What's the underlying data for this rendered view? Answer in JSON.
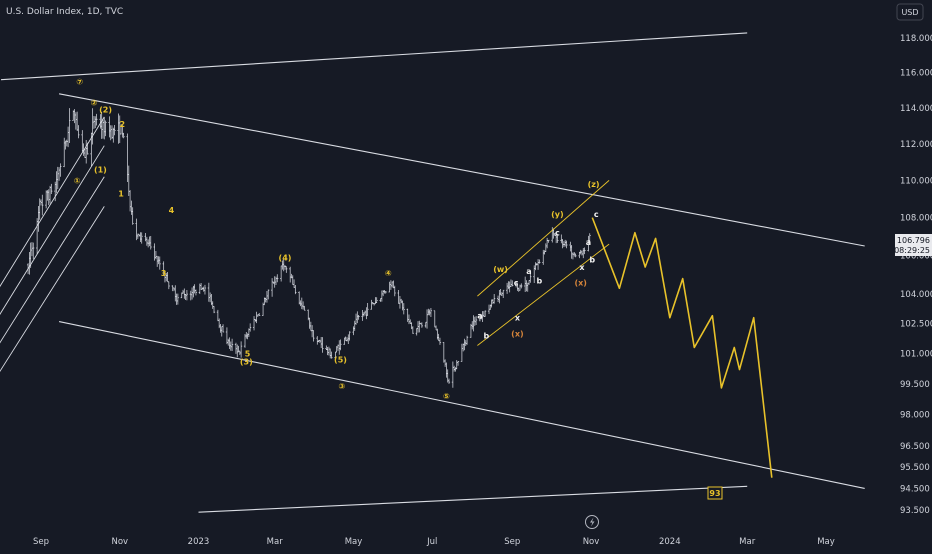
{
  "header": {
    "title": "U.S. Dollar Index, 1D, TVC",
    "currency_label": "USD"
  },
  "price_tag": {
    "price": "106.796",
    "countdown": "08:29:25"
  },
  "end_badge": "93",
  "colors": {
    "background": "#161a25",
    "bar": "#d1d4dc",
    "channel": "#d9dce3",
    "wave": "#e8c22a",
    "wave_small": "#f0f0f0",
    "x_label": "#d5843a",
    "text": "#d1d4dc"
  },
  "chart_data": {
    "type": "ohlc",
    "title": "U.S. Dollar Index, 1D, TVC",
    "y_axis": {
      "side": "right",
      "scale": "log",
      "ticks": [
        "118.000",
        "116.000",
        "114.000",
        "112.000",
        "110.000",
        "108.000",
        "106.000",
        "104.000",
        "102.500",
        "101.000",
        "99.500",
        "98.000",
        "96.500",
        "95.500",
        "94.500",
        "93.500"
      ]
    },
    "x_axis": {
      "ticks": [
        "Sep",
        "Nov",
        "2023",
        "Mar",
        "May",
        "Jul",
        "Sep",
        "Nov",
        "2024",
        "Mar",
        "May"
      ],
      "tick_dates": [
        "2022-09-01",
        "2022-11-01",
        "2023-01-01",
        "2023-03-01",
        "2023-05-01",
        "2023-07-01",
        "2023-09-01",
        "2023-11-01",
        "2024-01-01",
        "2024-03-01",
        "2024-05-01"
      ]
    },
    "price_path": [
      [
        "2022-08-20",
        105.2
      ],
      [
        "2022-09-01",
        108.7
      ],
      [
        "2022-09-12",
        109.8
      ],
      [
        "2022-09-27",
        114.1
      ],
      [
        "2022-10-04",
        110.9
      ],
      [
        "2022-10-13",
        113.4
      ],
      [
        "2022-10-20",
        112.9
      ],
      [
        "2022-11-03",
        112.8
      ],
      [
        "2022-11-10",
        107.9
      ],
      [
        "2022-11-30",
        105.8
      ],
      [
        "2022-12-15",
        103.9
      ],
      [
        "2023-01-05",
        104.5
      ],
      [
        "2023-01-26",
        101.3
      ],
      [
        "2023-02-02",
        101.2
      ],
      [
        "2023-03-08",
        105.6
      ],
      [
        "2023-03-31",
        101.9
      ],
      [
        "2023-04-14",
        100.9
      ],
      [
        "2023-05-31",
        104.7
      ],
      [
        "2023-06-16",
        102.0
      ],
      [
        "2023-06-30",
        103.1
      ],
      [
        "2023-07-14",
        99.7
      ],
      [
        "2023-08-01",
        102.5
      ],
      [
        "2023-08-25",
        104.1
      ],
      [
        "2023-09-12",
        104.6
      ],
      [
        "2023-10-03",
        107.2
      ],
      [
        "2023-10-20",
        105.8
      ],
      [
        "2023-10-24",
        106.1
      ],
      [
        "2023-10-26",
        106.4
      ],
      [
        "2023-10-31",
        106.8
      ]
    ],
    "projection": [
      [
        "2023-11-02",
        108.0
      ],
      [
        "2023-11-23",
        104.3
      ],
      [
        "2023-12-05",
        107.2
      ],
      [
        "2023-12-13",
        105.4
      ],
      [
        "2023-12-21",
        106.9
      ],
      [
        "2024-01-01",
        102.8
      ],
      [
        "2024-01-11",
        104.8
      ],
      [
        "2024-01-20",
        101.3
      ],
      [
        "2024-02-03",
        102.9
      ],
      [
        "2024-02-10",
        99.3
      ],
      [
        "2024-02-20",
        101.3
      ],
      [
        "2024-02-24",
        100.2
      ],
      [
        "2024-03-06",
        102.8
      ],
      [
        "2024-03-20",
        95.0
      ]
    ],
    "trendlines": [
      {
        "from": [
          "2022-08-01",
          115.6
        ],
        "to": [
          "2024-03-01",
          118.3
        ]
      },
      {
        "from": [
          "2022-09-15",
          114.8
        ],
        "to": [
          "2024-05-31",
          106.5
        ]
      },
      {
        "from": [
          "2022-09-15",
          102.6
        ],
        "to": [
          "2024-05-31",
          94.5
        ]
      },
      {
        "from": [
          "2023-01-01",
          93.4
        ],
        "to": [
          "2024-03-01",
          94.6
        ]
      }
    ],
    "wave_labels": [
      {
        "text": "⑦",
        "date": "2022-10-01",
        "price": 115.5
      },
      {
        "text": "②",
        "date": "2022-10-12",
        "price": 114.3
      },
      {
        "text": "(2)",
        "date": "2022-10-21",
        "price": 113.9
      },
      {
        "text": "2",
        "date": "2022-11-03",
        "price": 113.1
      },
      {
        "text": "①",
        "date": "2022-09-29",
        "price": 110.0
      },
      {
        "text": "(1)",
        "date": "2022-10-17",
        "price": 110.6
      },
      {
        "text": "1",
        "date": "2022-11-02",
        "price": 109.3
      },
      {
        "text": "4",
        "date": "2022-12-11",
        "price": 108.4
      },
      {
        "text": "3",
        "date": "2022-12-05",
        "price": 105.1
      },
      {
        "text": "(4)",
        "date": "2023-03-09",
        "price": 105.9
      },
      {
        "text": "④",
        "date": "2023-05-28",
        "price": 105.1
      },
      {
        "text": "5",
        "date": "2023-02-08",
        "price": 101.0
      },
      {
        "text": "(3)",
        "date": "2023-02-07",
        "price": 100.6
      },
      {
        "text": "(5)",
        "date": "2023-04-21",
        "price": 100.7
      },
      {
        "text": "③",
        "date": "2023-04-22",
        "price": 99.4
      },
      {
        "text": "⑤",
        "date": "2023-07-12",
        "price": 98.9
      },
      {
        "text": "(w)",
        "date": "2023-08-23",
        "price": 105.3
      },
      {
        "text": "(y)",
        "date": "2023-10-06",
        "price": 108.2
      },
      {
        "text": "(z)",
        "date": "2023-11-03",
        "price": 109.8
      },
      {
        "text": "(x)",
        "date": "2023-09-05",
        "price": 102.0
      },
      {
        "text": "(x)",
        "date": "2023-10-24",
        "price": 104.6
      },
      {
        "text": "a",
        "date": "2023-08-07",
        "price": 102.9
      },
      {
        "text": "b",
        "date": "2023-08-12",
        "price": 101.9
      },
      {
        "text": "c",
        "date": "2023-09-04",
        "price": 104.6
      },
      {
        "text": "x",
        "date": "2023-09-05",
        "price": 102.8
      },
      {
        "text": "a",
        "date": "2023-09-14",
        "price": 105.2
      },
      {
        "text": "b",
        "date": "2023-09-22",
        "price": 104.7
      },
      {
        "text": "c",
        "date": "2023-10-06",
        "price": 107.2
      },
      {
        "text": "x",
        "date": "2023-10-25",
        "price": 105.4
      },
      {
        "text": "a",
        "date": "2023-10-30",
        "price": 106.7
      },
      {
        "text": "b",
        "date": "2023-11-02",
        "price": 105.8
      },
      {
        "text": "c",
        "date": "2023-11-05",
        "price": 108.2
      }
    ]
  }
}
